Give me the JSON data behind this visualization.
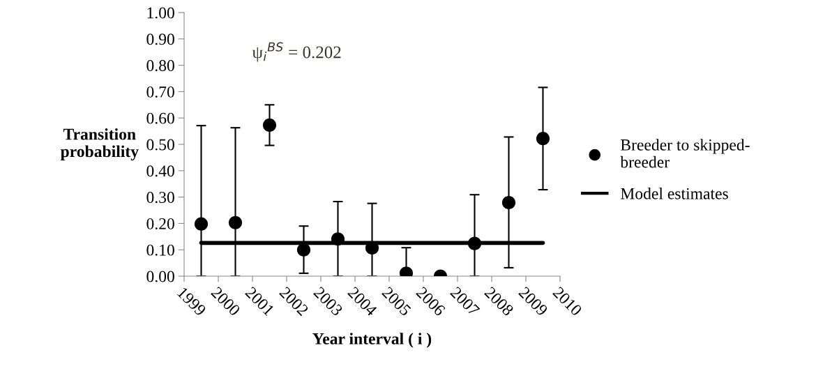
{
  "chart_data": {
    "type": "scatter",
    "xlabel": "Year interval ( i )",
    "ylabel": "Transition\nprobability",
    "annotations": [
      "ψ$_{i}$$^{BS}$ = 0.202"
    ],
    "xlim": [
      1999,
      2010
    ],
    "xticks": [
      1999,
      2000,
      2001,
      2002,
      2003,
      2004,
      2005,
      2006,
      2007,
      2008,
      2009,
      2010
    ],
    "ylim": [
      0,
      1
    ],
    "yticks": [
      {
        "value": 0,
        "label": "0.00"
      },
      {
        "value": 0.1,
        "label": "0.10"
      },
      {
        "value": 0.2,
        "label": "0.20"
      },
      {
        "value": 0.3,
        "label": "0.30"
      },
      {
        "value": 0.4,
        "label": "0.40"
      },
      {
        "value": 0.5,
        "label": "0.50"
      },
      {
        "value": 0.6,
        "label": "0.60"
      },
      {
        "value": 0.7,
        "label": "0.70"
      },
      {
        "value": 0.8,
        "label": "0.80"
      },
      {
        "value": 0.9,
        "label": "0.90"
      },
      {
        "value": 1,
        "label": "1.00"
      }
    ],
    "grid": false,
    "legend": "right",
    "series": [
      {
        "name": "Breeder to skipped-\nbreeder",
        "marker": "circle",
        "color": "#000000",
        "x": [
          1999.5,
          2000.5,
          2001.5,
          2002.5,
          2003.5,
          2004.5,
          2005.5,
          2006.5,
          2007.5,
          2008.5,
          2009.5
        ],
        "values": [
          0.198,
          0.203,
          0.573,
          0.1,
          0.141,
          0.107,
          0.011,
          0.0,
          0.124,
          0.279,
          0.522
        ],
        "errors": [
          [
            0,
            0.571
          ],
          [
            0,
            0.563
          ],
          [
            0.496,
            0.65
          ],
          [
            0.011,
            0.19
          ],
          [
            0,
            0.283
          ],
          [
            0,
            0.276
          ],
          [
            0,
            0.108
          ],
          null,
          [
            0,
            0.309
          ],
          [
            0.032,
            0.528
          ],
          [
            0.328,
            0.716
          ]
        ]
      },
      {
        "name": "Model estimates",
        "type": "line",
        "marker": "none",
        "color": "#000000",
        "x": [
          1999.5,
          2009.5
        ],
        "values": [
          0.126,
          0.126
        ]
      }
    ]
  }
}
